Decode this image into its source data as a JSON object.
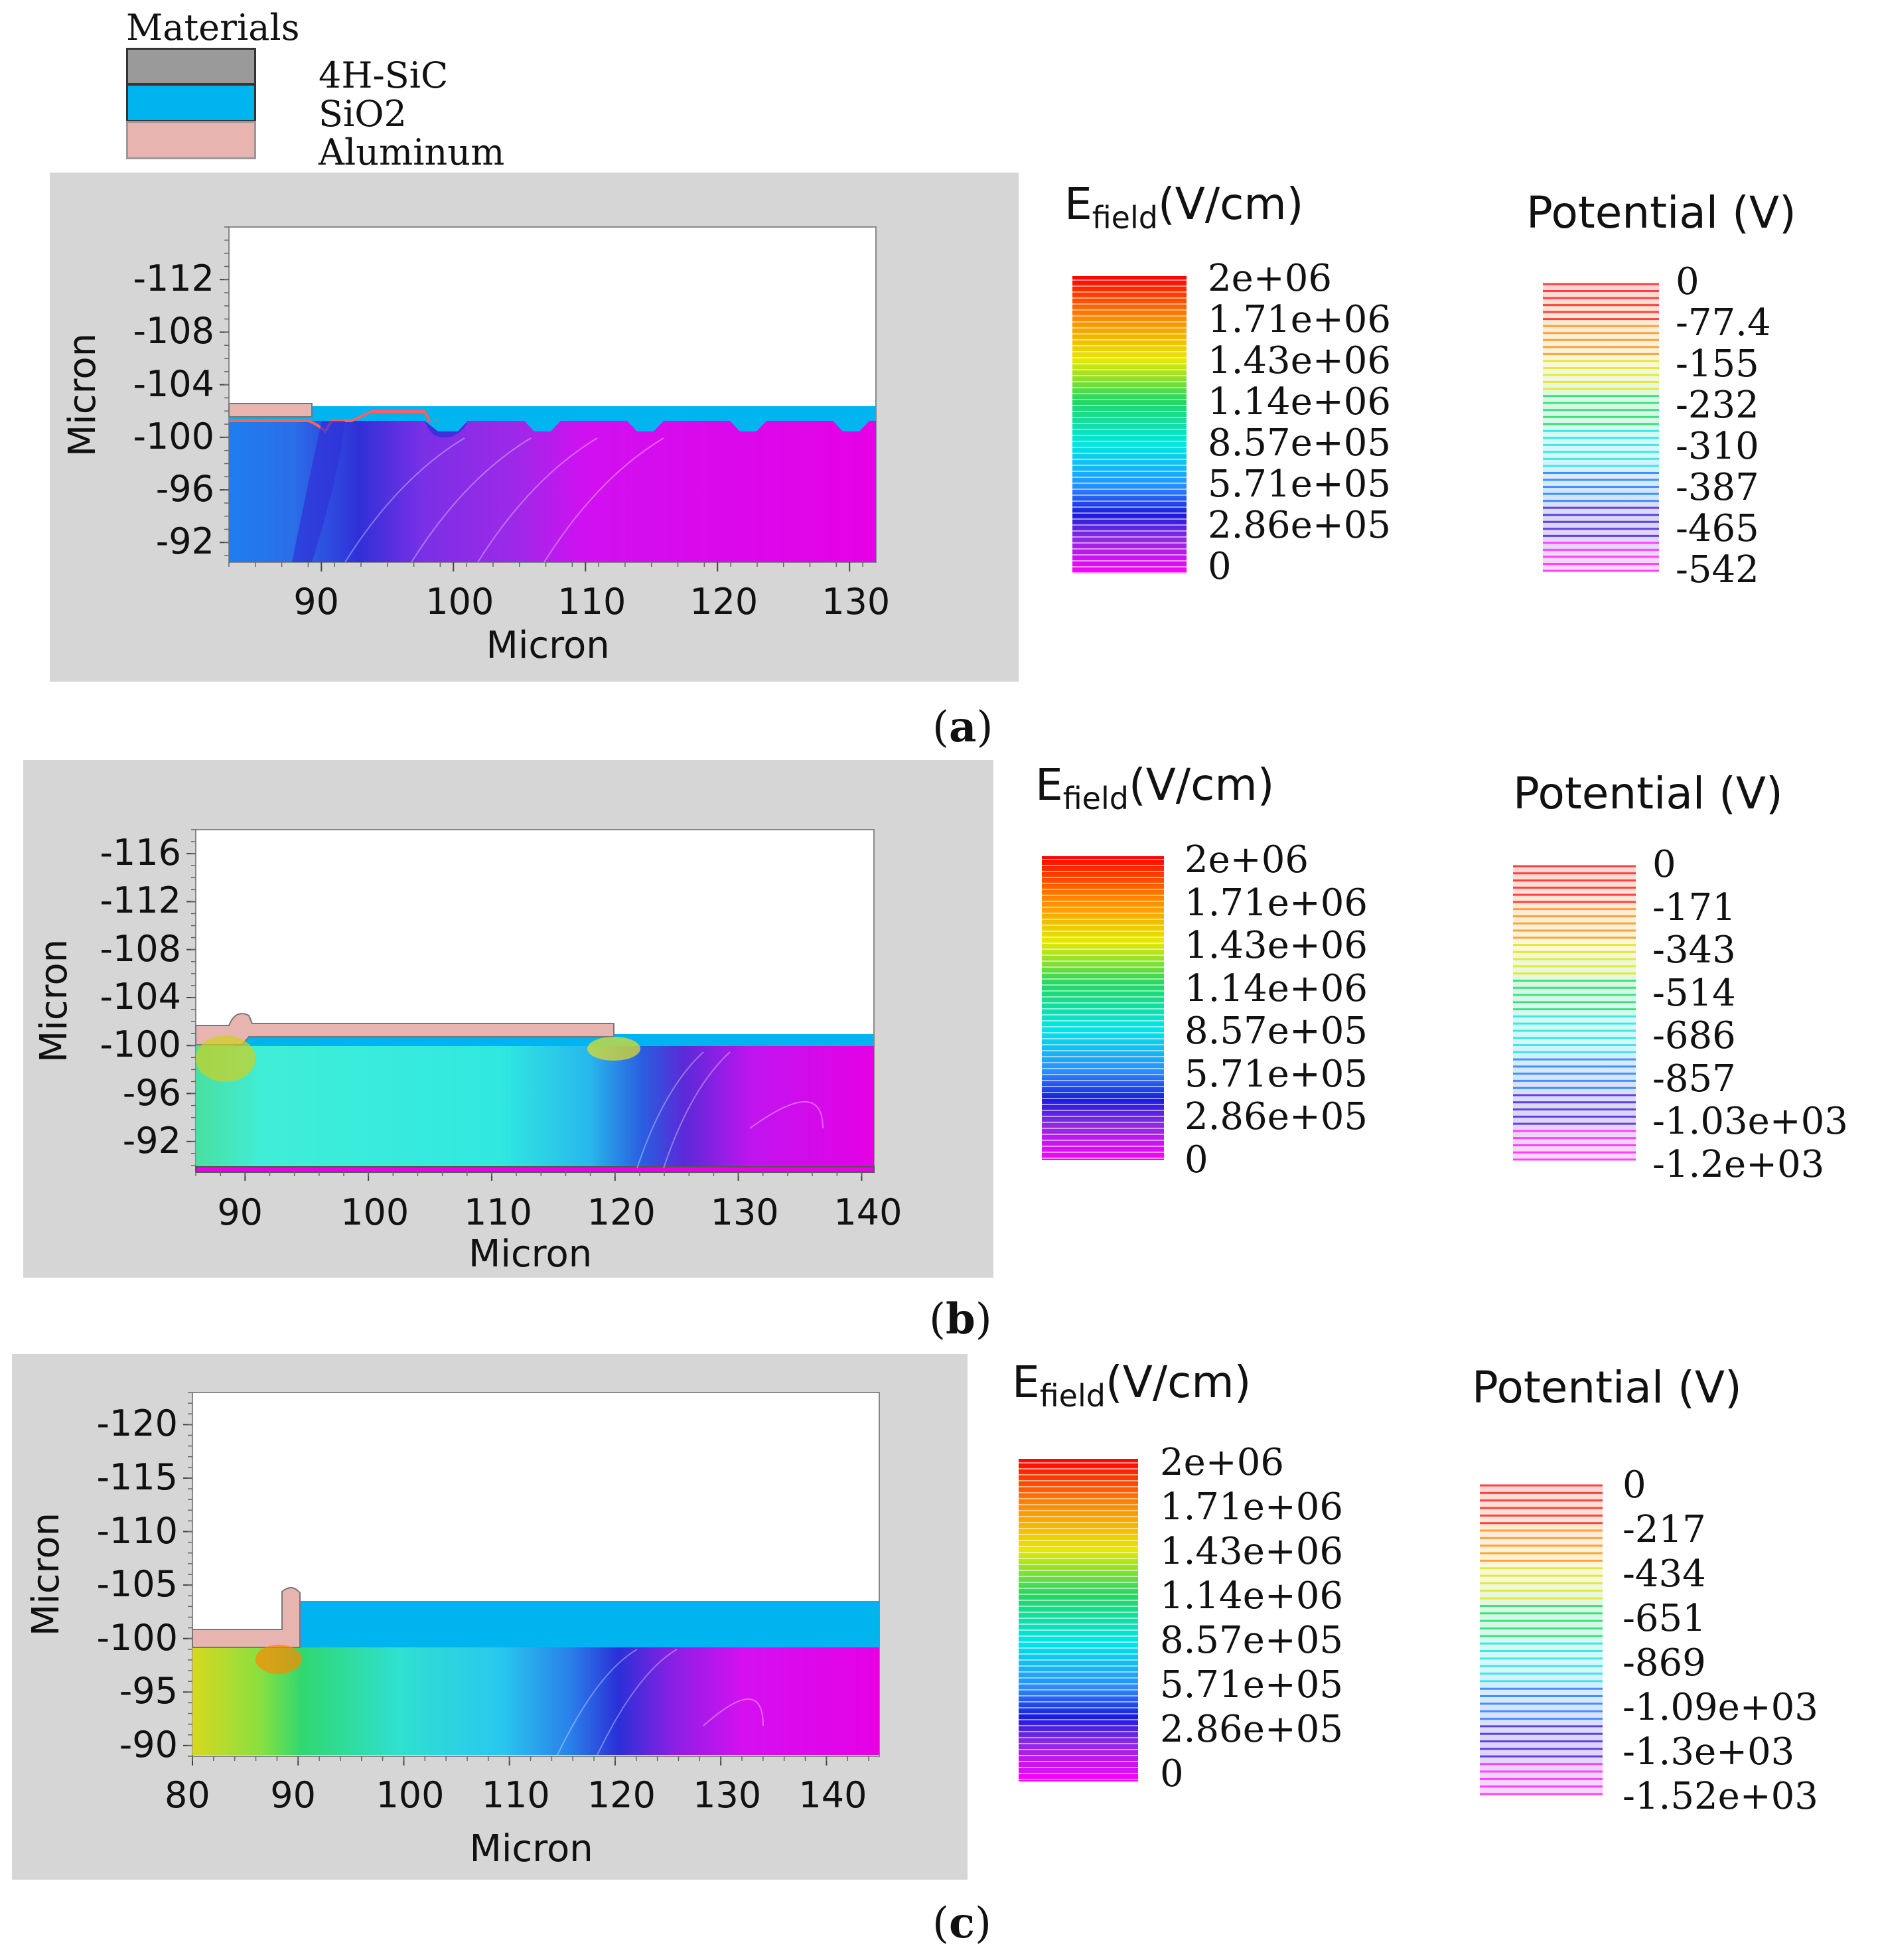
{
  "materials_legend": {
    "title": "Materials",
    "items": [
      {
        "label": "4H-SiC",
        "color": "#9a9a9a"
      },
      {
        "label": "SiO2",
        "color": "#00b4f0"
      },
      {
        "label": "Aluminum",
        "color": "#e8b4b0"
      }
    ]
  },
  "colors": {
    "panel_bg": "#d6d6d6",
    "sic_field_low": "#e600e6",
    "oxide": "#00b4f0",
    "aluminum": "#e8b4b0"
  },
  "chart_data": [
    {
      "type": "heatmap",
      "panel": "a",
      "caption": "(a)",
      "xlabel": "Micron",
      "ylabel": "Micron",
      "xlim": [
        83,
        132
      ],
      "ylim": [
        -116,
        -90.5
      ],
      "x_ticks": [
        "90",
        "100",
        "110",
        "120",
        "130"
      ],
      "x_tick_values": [
        90,
        100,
        110,
        120,
        130
      ],
      "y_ticks": [
        "-112",
        "-108",
        "-104",
        "-100",
        "-96",
        "-92"
      ],
      "y_tick_values": [
        -112,
        -108,
        -104,
        -100,
        -96,
        -92
      ],
      "efield_legend": {
        "title_main": "E",
        "title_sub": "field",
        "title_unit": "(V/cm)",
        "values": [
          "2e+06",
          "1.71e+06",
          "1.43e+06",
          "1.14e+06",
          "8.57e+05",
          "5.71e+05",
          "2.86e+05",
          "0"
        ]
      },
      "potential_legend": {
        "title": "Potential (V)",
        "values": [
          "0",
          "-77.4",
          "-155",
          "-232",
          "-310",
          "-387",
          "-465",
          "-542"
        ]
      }
    },
    {
      "type": "heatmap",
      "panel": "b",
      "caption": "(b)",
      "xlabel": "Micron",
      "ylabel": "Micron",
      "xlim": [
        86,
        141
      ],
      "ylim": [
        -118,
        -89.5
      ],
      "x_ticks": [
        "90",
        "100",
        "110",
        "120",
        "130",
        "140"
      ],
      "x_tick_values": [
        90,
        100,
        110,
        120,
        130,
        140
      ],
      "y_ticks": [
        "-116",
        "-112",
        "-108",
        "-104",
        "-100",
        "-96",
        "-92"
      ],
      "y_tick_values": [
        -116,
        -112,
        -108,
        -104,
        -100,
        -96,
        -92
      ],
      "efield_legend": {
        "title_main": "E",
        "title_sub": "field",
        "title_unit": "(V/cm)",
        "values": [
          "2e+06",
          "1.71e+06",
          "1.43e+06",
          "1.14e+06",
          "8.57e+05",
          "5.71e+05",
          "2.86e+05",
          "0"
        ]
      },
      "potential_legend": {
        "title": "Potential (V)",
        "values": [
          "0",
          "-171",
          "-343",
          "-514",
          "-686",
          "-857",
          "-1.03e+03",
          "-1.2e+03"
        ]
      }
    },
    {
      "type": "heatmap",
      "panel": "c",
      "caption": "(c)",
      "xlabel": "Micron",
      "ylabel": "Micron",
      "xlim": [
        80,
        145
      ],
      "ylim": [
        -123,
        -89
      ],
      "x_ticks": [
        "80",
        "90",
        "100",
        "110",
        "120",
        "130",
        "140"
      ],
      "x_tick_values": [
        80,
        90,
        100,
        110,
        120,
        130,
        140
      ],
      "y_ticks": [
        "-120",
        "-115",
        "-110",
        "-105",
        "-100",
        "-95",
        "-90"
      ],
      "y_tick_values": [
        -120,
        -115,
        -110,
        -105,
        -100,
        -95,
        -90
      ],
      "efield_legend": {
        "title_main": "E",
        "title_sub": "field",
        "title_unit": "(V/cm)",
        "values": [
          "2e+06",
          "1.71e+06",
          "1.43e+06",
          "1.14e+06",
          "8.57e+05",
          "5.71e+05",
          "2.86e+05",
          "0"
        ]
      },
      "potential_legend": {
        "title": "Potential (V)",
        "values": [
          "0",
          "-217",
          "-434",
          "-651",
          "-869",
          "-1.09e+03",
          "-1.3e+03",
          "-1.52e+03"
        ]
      }
    }
  ]
}
